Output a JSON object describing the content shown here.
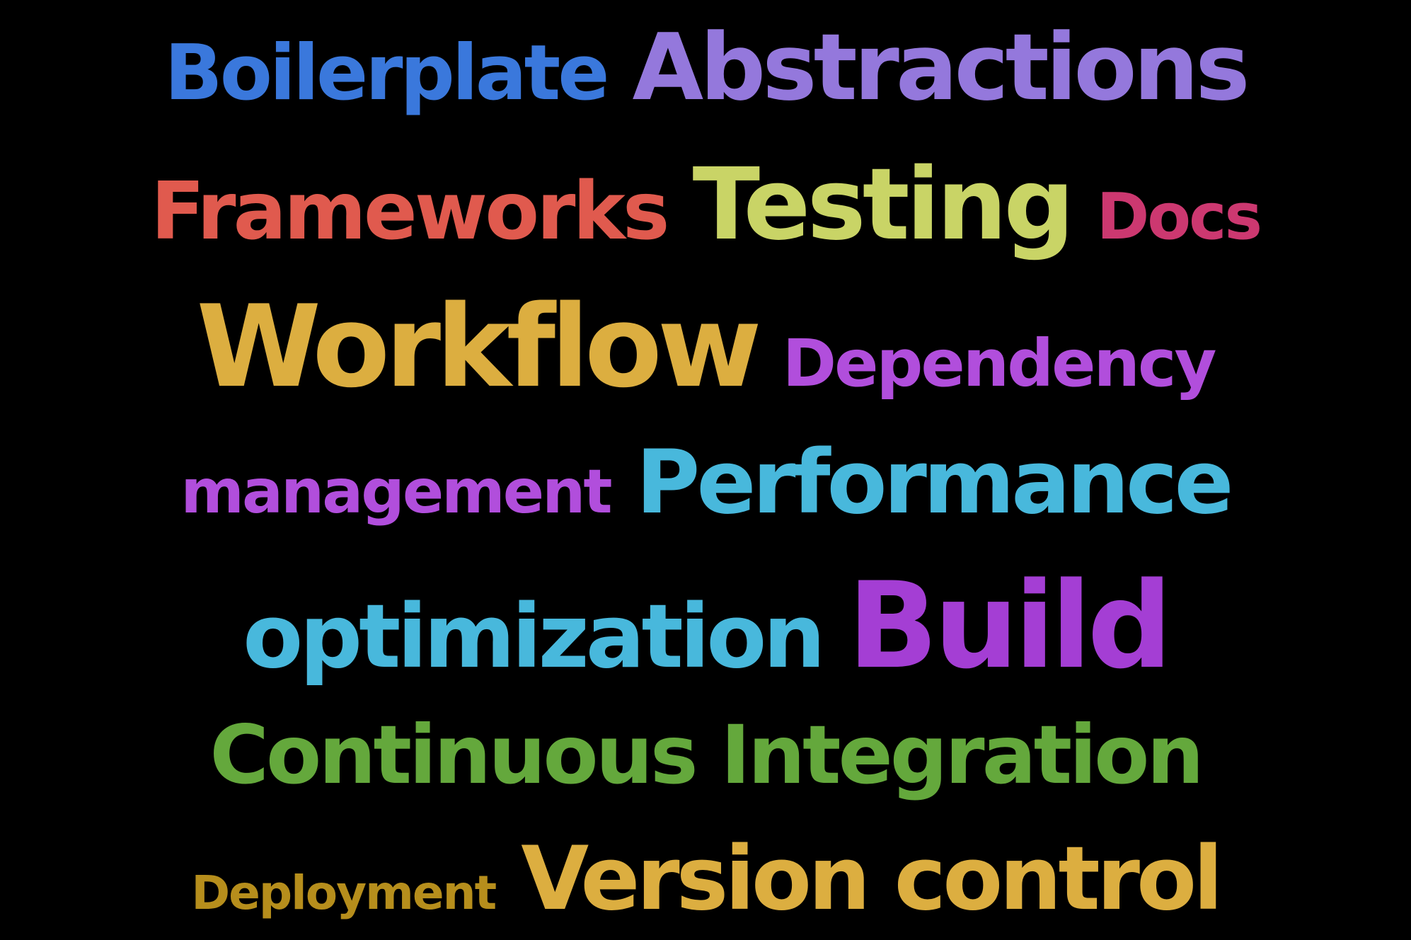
{
  "words": [
    {
      "text": "Boilerplate",
      "color": "#3a78dc"
    },
    {
      "text": "Abstractions",
      "color": "#9478dc"
    },
    {
      "text": "Frameworks",
      "color": "#e05a4e"
    },
    {
      "text": "Testing",
      "color": "#c9d466"
    },
    {
      "text": "Docs",
      "color": "#cc3870"
    },
    {
      "text": "Workflow",
      "color": "#dcae40"
    },
    {
      "text": "Dependency",
      "color": "#b14edc"
    },
    {
      "text": "management",
      "color": "#b14edc"
    },
    {
      "text": "Performance",
      "color": "#48b8dc"
    },
    {
      "text": "optimization",
      "color": "#48b8dc"
    },
    {
      "text": "Build",
      "color": "#a43ed4"
    },
    {
      "text": "Continuous Integration",
      "color": "#64a83c"
    },
    {
      "text": "Deployment",
      "color": "#b68e1c"
    },
    {
      "text": "Version control",
      "color": "#dcae40"
    }
  ]
}
